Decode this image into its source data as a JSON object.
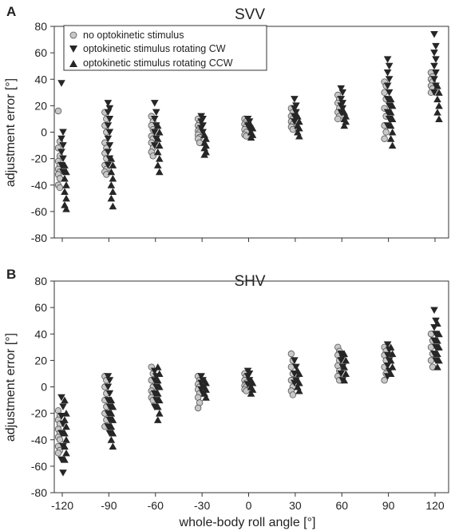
{
  "chart_data": [
    {
      "type": "scatter",
      "panel_label": "A",
      "title": "SVV",
      "ylabel": "adjustment error [°]",
      "xlabel": "",
      "ylim": [
        -80,
        80
      ],
      "yticks": [
        "80",
        "60",
        "40",
        "20",
        "0",
        "-20",
        "-40",
        "-60",
        "-80"
      ],
      "categories": [
        "-120",
        "-90",
        "-60",
        "-30",
        "0",
        "30",
        "60",
        "90",
        "120"
      ],
      "legend_position": "top-left",
      "colors": {
        "none": "#c8c8c8",
        "cw": "#262626",
        "ccw": "#262626"
      },
      "series": [
        {
          "name": "no optokinetic stimulus",
          "marker": "circle",
          "values": [
            [
              16,
              -7,
              -12,
              -18,
              -22,
              -25,
              -28,
              -30,
              -32,
              -35,
              -40,
              -42
            ],
            [
              15,
              10,
              5,
              0,
              -8,
              -12,
              -16,
              -20,
              -25,
              -28,
              -30,
              -32
            ],
            [
              12,
              8,
              5,
              2,
              -3,
              -5,
              -8,
              -12,
              -15,
              -18
            ],
            [
              10,
              7,
              5,
              3,
              1,
              0,
              -2,
              -4,
              -5,
              -8
            ],
            [
              10,
              8,
              6,
              4,
              2,
              0,
              -2,
              -3
            ],
            [
              18,
              15,
              12,
              10,
              8,
              6,
              4,
              2
            ],
            [
              28,
              25,
              22,
              18,
              15,
              12,
              10
            ],
            [
              38,
              35,
              30,
              25,
              18,
              12,
              5,
              0,
              -5
            ],
            [
              45,
              42,
              40,
              38,
              35,
              33,
              30
            ]
          ]
        },
        {
          "name": "optokinetic stimulus rotating CW",
          "marker": "triangle-down",
          "values": [
            [
              37,
              0,
              -5,
              -10,
              -15,
              -20,
              -25,
              -30
            ],
            [
              22,
              18,
              15,
              10,
              5,
              0,
              -5,
              -10,
              -15,
              -20,
              -25
            ],
            [
              22,
              15,
              10,
              5,
              0,
              -5,
              -10
            ],
            [
              12,
              10,
              8,
              5,
              3,
              0
            ],
            [
              10,
              8,
              5,
              3
            ],
            [
              25,
              20,
              18,
              15,
              12,
              10,
              8
            ],
            [
              33,
              30,
              25,
              22,
              20,
              18,
              15
            ],
            [
              55,
              50,
              45,
              40,
              35,
              30,
              25,
              20,
              15,
              10,
              5
            ],
            [
              74,
              65,
              60,
              55,
              50,
              45,
              40,
              35,
              30
            ]
          ]
        },
        {
          "name": "optokinetic stimulus rotating CCW",
          "marker": "triangle-up",
          "values": [
            [
              -25,
              -30,
              -35,
              -40,
              -45,
              -50,
              -55,
              -58
            ],
            [
              -20,
              -25,
              -30,
              -35,
              -40,
              -45,
              -50,
              -56
            ],
            [
              5,
              0,
              -5,
              -10,
              -15,
              -20,
              -25,
              -30
            ],
            [
              -2,
              -5,
              -8,
              -10,
              -12,
              -15,
              -17
            ],
            [
              5,
              3,
              0,
              -2,
              -4
            ],
            [
              12,
              8,
              5,
              3,
              0,
              -3
            ],
            [
              15,
              12,
              10,
              8,
              5
            ],
            [
              25,
              20,
              15,
              10,
              5,
              0,
              -5,
              -10
            ],
            [
              35,
              30,
              25,
              20,
              15,
              10
            ]
          ]
        }
      ]
    },
    {
      "type": "scatter",
      "panel_label": "B",
      "title": "SHV",
      "ylabel": "adjustment error [°]",
      "xlabel": "whole-body roll angle [°]",
      "ylim": [
        -80,
        80
      ],
      "yticks": [
        "80",
        "60",
        "40",
        "20",
        "0",
        "-20",
        "-40",
        "-60",
        "-80"
      ],
      "categories": [
        "-120",
        "-90",
        "-60",
        "-30",
        "0",
        "30",
        "60",
        "90",
        "120"
      ],
      "colors": {
        "none": "#c8c8c8",
        "cw": "#262626",
        "ccw": "#262626"
      },
      "series": [
        {
          "name": "no optokinetic stimulus",
          "marker": "circle",
          "values": [
            [
              -18,
              -22,
              -25,
              -28,
              -32,
              -35,
              -38,
              -40,
              -45,
              -48,
              -50
            ],
            [
              8,
              5,
              0,
              -5,
              -10,
              -15,
              -20,
              -25,
              -30
            ],
            [
              15,
              10,
              5,
              0,
              -3,
              -5,
              -8,
              -10
            ],
            [
              8,
              5,
              2,
              0,
              -2,
              -5,
              -8,
              -12,
              -16
            ],
            [
              10,
              8,
              5,
              3,
              1,
              0,
              -2,
              -3
            ],
            [
              25,
              20,
              15,
              10,
              5,
              0,
              -3,
              -6
            ],
            [
              30,
              27,
              24,
              20,
              16,
              12,
              8,
              5
            ],
            [
              30,
              27,
              24,
              20,
              15,
              10,
              5
            ],
            [
              40,
              35,
              30,
              25,
              20,
              15
            ]
          ]
        },
        {
          "name": "optokinetic stimulus rotating CW",
          "marker": "triangle-down",
          "values": [
            [
              -8,
              -15,
              -22,
              -28,
              -35,
              -45,
              -55,
              -65
            ],
            [
              8,
              5,
              0,
              -5,
              -10,
              -15,
              -20,
              -25,
              -30,
              -35
            ],
            [
              12,
              8,
              5,
              0,
              -5,
              -10,
              -15
            ],
            [
              8,
              5,
              3,
              0,
              -2,
              -5
            ],
            [
              12,
              10,
              8,
              5,
              2
            ],
            [
              20,
              15,
              10,
              5,
              3
            ],
            [
              25,
              22,
              20,
              15,
              10,
              5
            ],
            [
              32,
              28,
              24,
              20,
              16,
              12,
              8
            ],
            [
              58,
              50,
              45,
              40,
              35,
              30,
              25,
              20
            ]
          ]
        },
        {
          "name": "optokinetic stimulus rotating CCW",
          "marker": "triangle-up",
          "values": [
            [
              -10,
              -20,
              -25,
              -30,
              -35,
              -40,
              -45,
              -50,
              -55
            ],
            [
              -10,
              -15,
              -20,
              -25,
              -30,
              -35,
              -40,
              -45
            ],
            [
              15,
              10,
              5,
              0,
              -5,
              -10,
              -15,
              -20,
              -25
            ],
            [
              5,
              3,
              0,
              -2,
              -5,
              -8
            ],
            [
              5,
              3,
              0,
              -2,
              -5
            ],
            [
              12,
              10,
              5,
              3,
              0,
              -3
            ],
            [
              25,
              20,
              15,
              10,
              5
            ],
            [
              30,
              25,
              20,
              15,
              10
            ],
            [
              48,
              40,
              35,
              30,
              25,
              20,
              15
            ]
          ]
        }
      ]
    }
  ]
}
